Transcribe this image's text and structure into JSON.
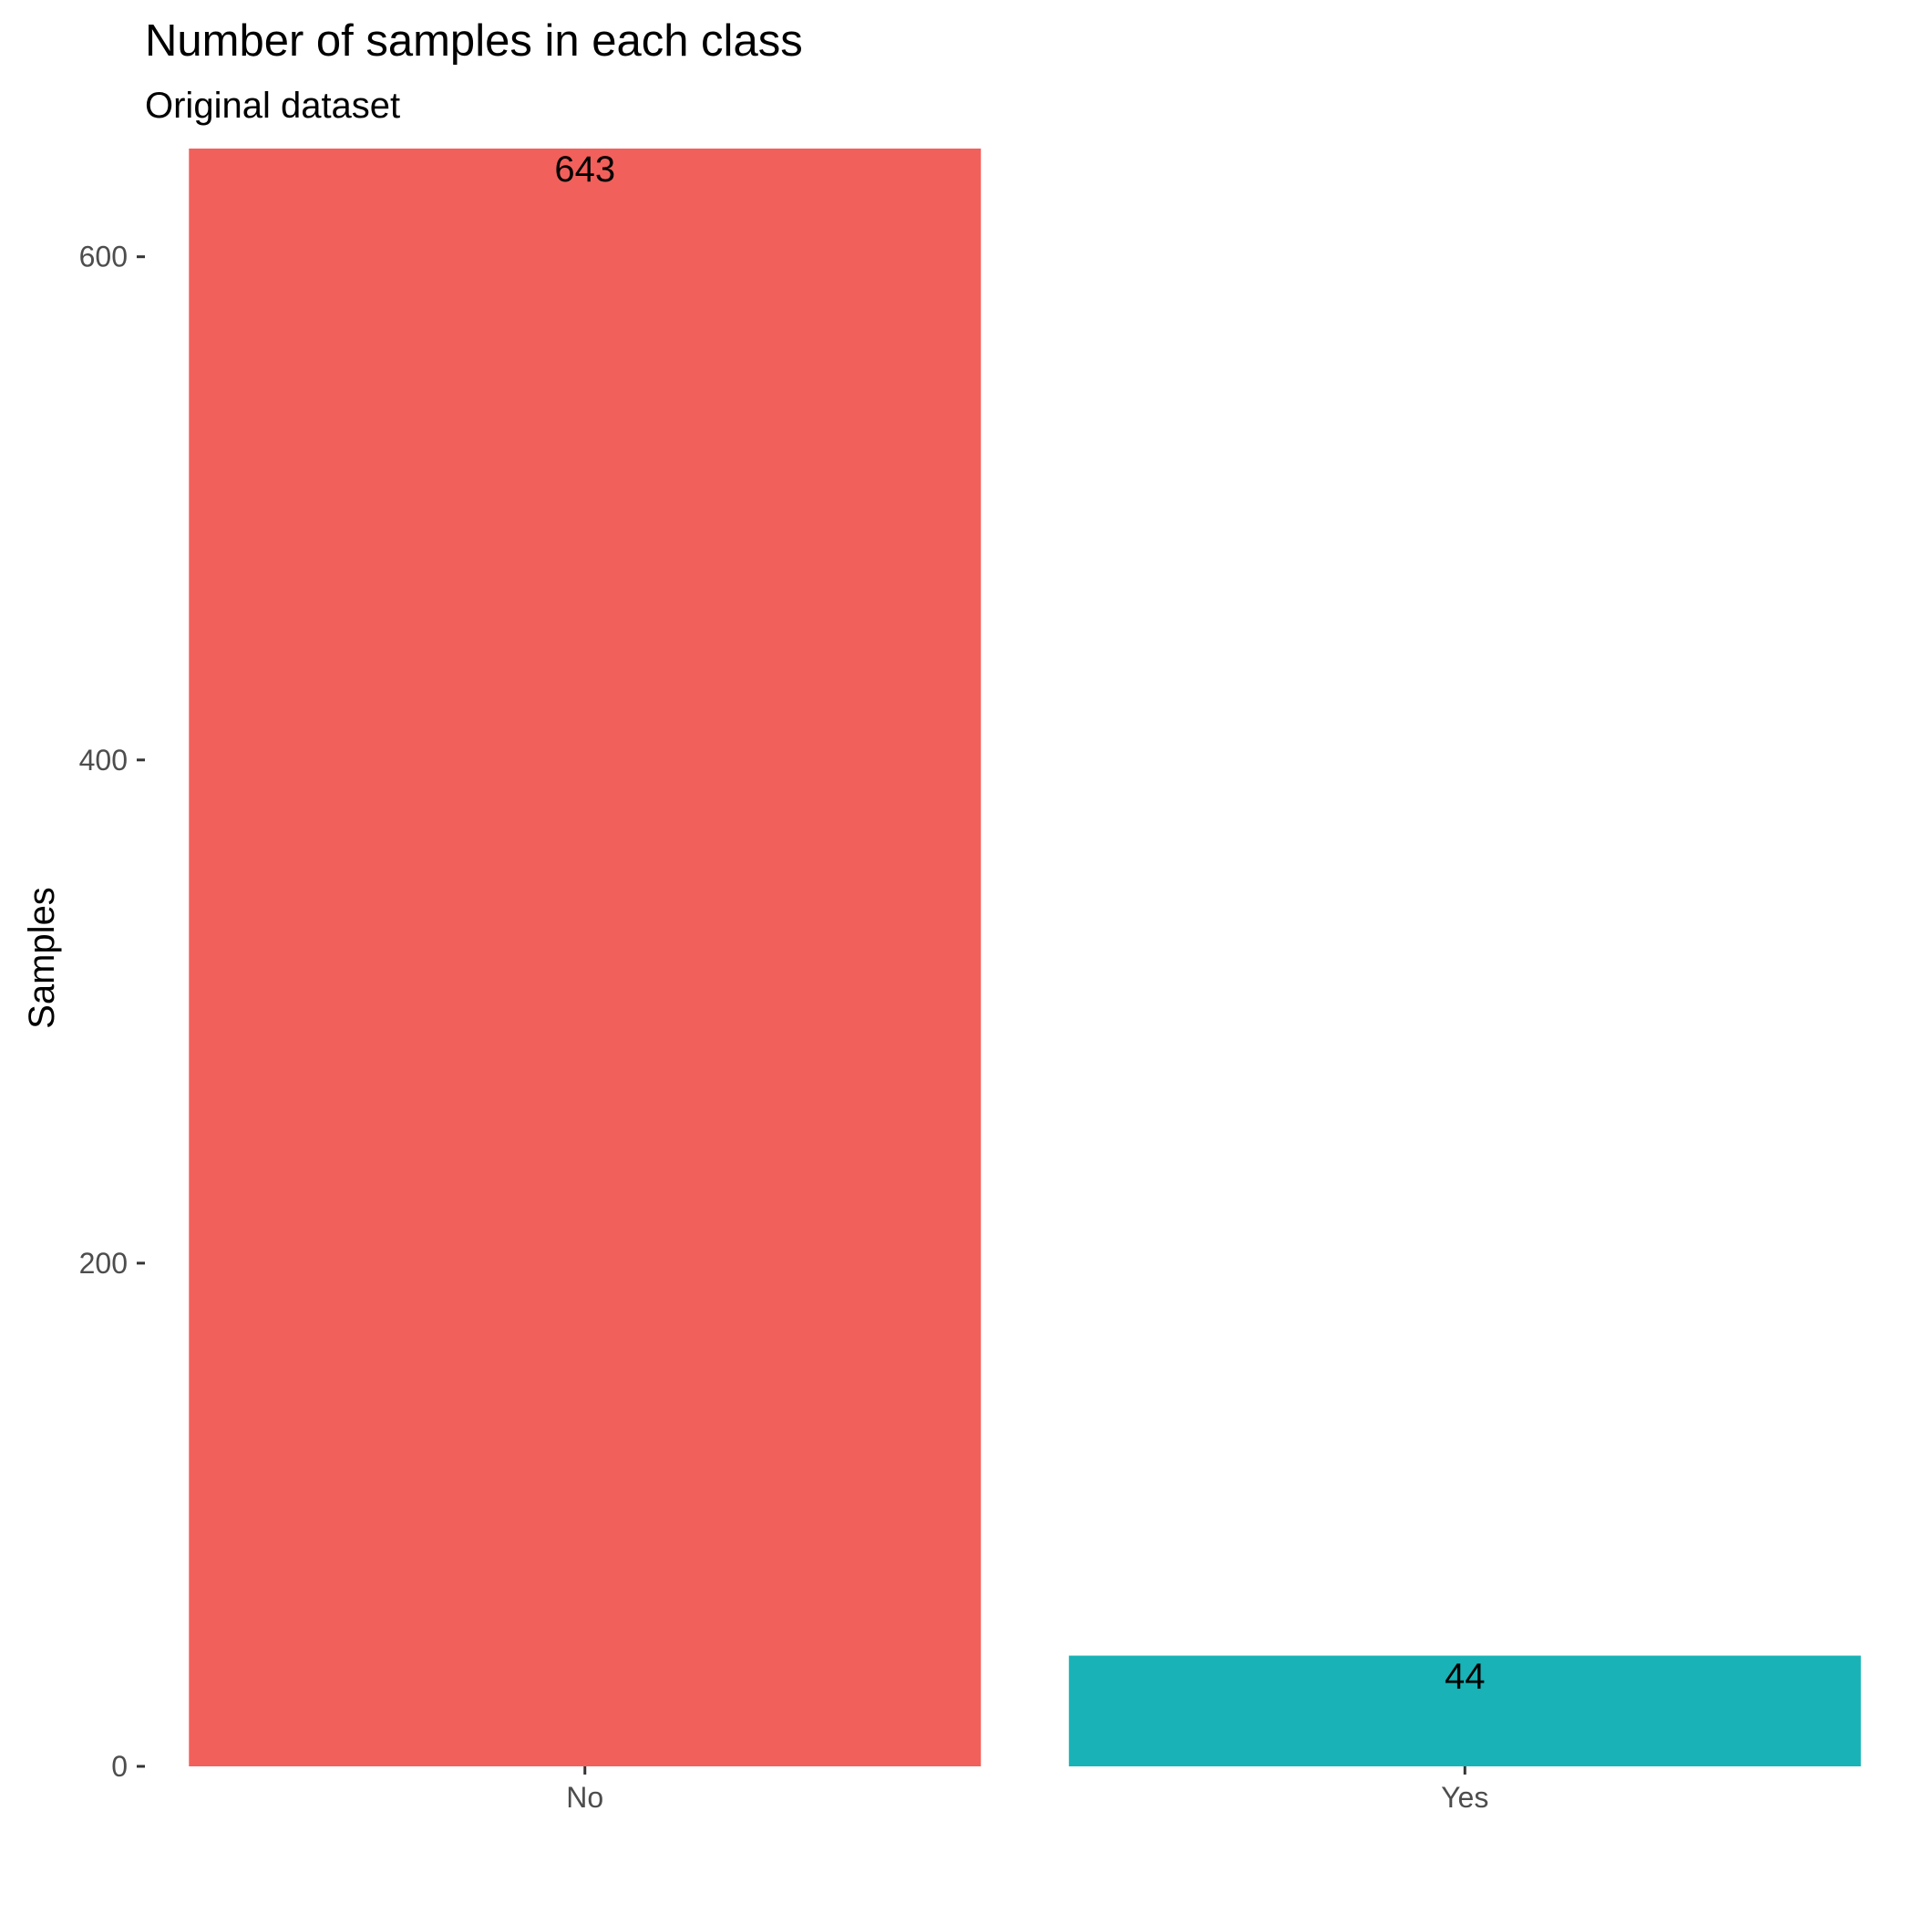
{
  "chart_data": {
    "type": "bar",
    "title": "Number of samples in each class",
    "subtitle": "Original dataset",
    "xlabel": "",
    "ylabel": "Samples",
    "categories": [
      "No",
      "Yes"
    ],
    "values": [
      643,
      44
    ],
    "data_labels": [
      "643",
      "44"
    ],
    "colors": [
      "#F2605B",
      "#19B2B6"
    ],
    "ylim": [
      0,
      643
    ],
    "yticks": [
      0,
      200,
      400,
      600
    ],
    "ytick_labels": [
      "0",
      "200",
      "400",
      "600"
    ],
    "grid": false,
    "legend": "none"
  }
}
